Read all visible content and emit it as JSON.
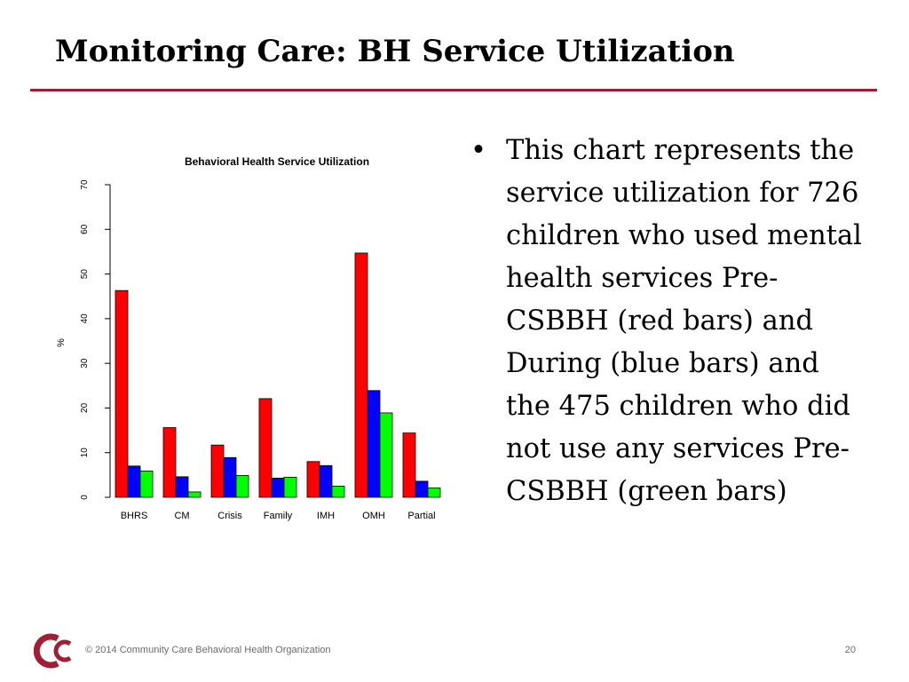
{
  "slide": {
    "title": "Monitoring Care: BH Service Utilization",
    "bullet_symbol": "•",
    "bullet_text": "This chart represents the service utilization for 726 children who used mental health services Pre-CSBBH (red bars) and During (blue bars) and the 475 children who did not use any services Pre-CSBBH (green bars)",
    "footer_text": "© 2014 Community Care Behavioral Health Organization",
    "page_number": "20",
    "accent_color": "#a11f36"
  },
  "chart_data": {
    "type": "bar",
    "title": "Behavioral Health Service Utilization",
    "xlabel": "",
    "ylabel": "%",
    "ylim": [
      0,
      70
    ],
    "yticks": [
      0,
      10,
      20,
      30,
      40,
      50,
      60,
      70
    ],
    "grid": false,
    "categories": [
      "BHRS",
      "CM",
      "Crisis",
      "Family",
      "IMH",
      "OMH",
      "Partial"
    ],
    "series": [
      {
        "color": "#ff0000",
        "values": [
          46.3,
          15.6,
          11.7,
          22.1,
          8.0,
          54.7,
          14.4
        ]
      },
      {
        "color": "#0000ff",
        "values": [
          7.0,
          4.6,
          8.9,
          4.3,
          7.1,
          23.9,
          3.6
        ]
      },
      {
        "color": "#00ff00",
        "values": [
          5.9,
          1.2,
          4.9,
          4.5,
          2.5,
          18.9,
          2.1
        ]
      }
    ]
  }
}
